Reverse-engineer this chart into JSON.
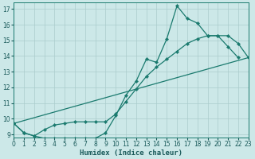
{
  "xlabel": "Humidex (Indice chaleur)",
  "bg_color": "#cce8e8",
  "grid_color": "#aacccc",
  "line_color": "#1a7a6e",
  "line1_x": [
    0,
    1,
    2,
    3,
    4,
    5,
    6,
    7,
    8,
    9,
    10,
    11,
    12,
    13,
    14,
    15,
    16,
    17,
    18,
    19,
    20,
    21,
    22
  ],
  "line1_y": [
    9.7,
    9.1,
    8.9,
    8.75,
    8.75,
    8.75,
    8.75,
    8.75,
    8.75,
    9.1,
    10.2,
    11.5,
    12.4,
    13.8,
    13.6,
    15.1,
    17.2,
    16.4,
    16.1,
    15.3,
    15.3,
    14.6,
    13.9
  ],
  "line2_x": [
    0,
    1,
    2,
    3,
    4,
    5,
    6,
    7,
    8,
    9,
    10,
    11,
    12,
    13,
    14,
    15,
    16,
    17,
    18,
    19,
    20,
    21,
    22,
    23
  ],
  "line2_y": [
    9.7,
    9.1,
    8.9,
    9.3,
    9.6,
    9.7,
    9.8,
    9.8,
    9.8,
    9.8,
    10.3,
    11.1,
    11.9,
    12.7,
    13.3,
    13.8,
    14.3,
    14.8,
    15.1,
    15.3,
    15.3,
    15.3,
    14.8,
    13.9
  ],
  "line3_x": [
    0,
    23
  ],
  "line3_y": [
    9.7,
    13.9
  ],
  "xlim": [
    0,
    23
  ],
  "ylim": [
    8.8,
    17.4
  ],
  "yticks": [
    9,
    10,
    11,
    12,
    13,
    14,
    15,
    16,
    17
  ],
  "xticks": [
    0,
    1,
    2,
    3,
    4,
    5,
    6,
    7,
    8,
    9,
    10,
    11,
    12,
    13,
    14,
    15,
    16,
    17,
    18,
    19,
    20,
    21,
    22,
    23
  ],
  "tick_fontsize": 5.5,
  "xlabel_fontsize": 6.5,
  "lw": 0.9,
  "ms": 2.2
}
